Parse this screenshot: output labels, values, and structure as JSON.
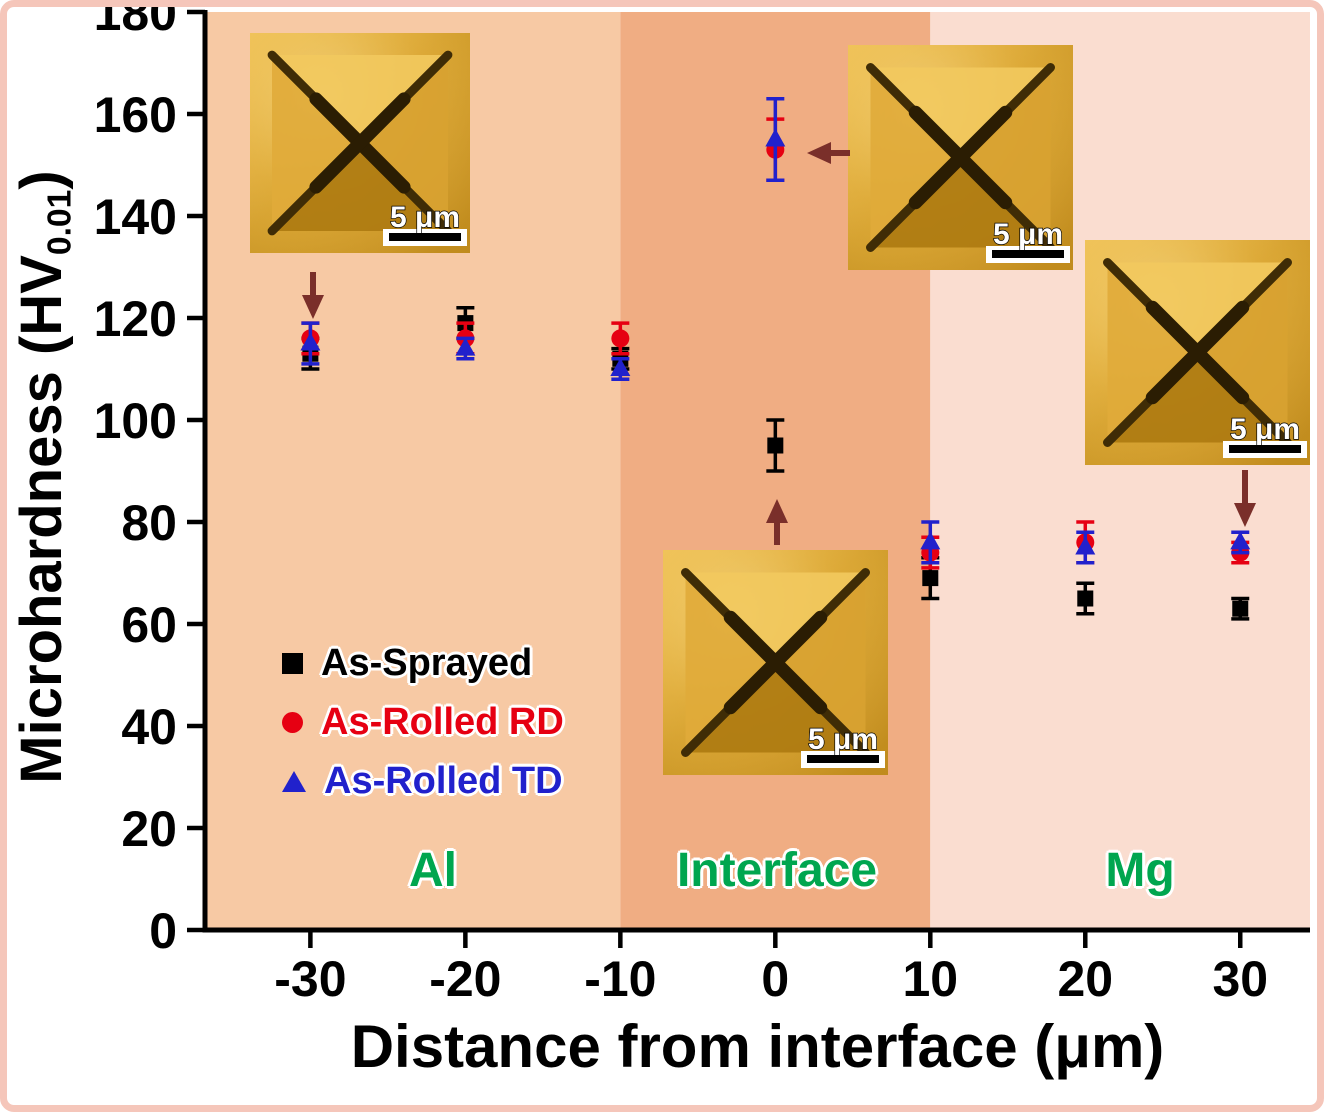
{
  "colors": {
    "region_label": "#00a64f",
    "arrow": "#7a2f2a",
    "axis": "#000000"
  },
  "insets": [
    {
      "name": "al-indent-inset",
      "scale_label": "5 μm"
    },
    {
      "name": "interface-top-indent-inset",
      "scale_label": "5 μm"
    },
    {
      "name": "mg-indent-inset",
      "scale_label": "5 μm"
    },
    {
      "name": "interface-bottom-indent-inset",
      "scale_label": "5 μm"
    }
  ],
  "chart_data": {
    "type": "scatter",
    "title": "",
    "xlabel": "Distance from interface (μm)",
    "ylabel": {
      "prefix": "Microhardness (HV",
      "sub": "0.01",
      "suffix": ")"
    },
    "xlim": [
      -36.8,
      34.5
    ],
    "ylim": [
      0,
      180
    ],
    "xticks": [
      -30,
      -20,
      -10,
      0,
      10,
      20,
      30
    ],
    "yticks": [
      0,
      20,
      40,
      60,
      80,
      100,
      120,
      140,
      160,
      180
    ],
    "grid": false,
    "legend_position": "inside bottom-left",
    "regions": [
      {
        "label": "Al",
        "from": -36.8,
        "to": -10,
        "color": "#f7c9a4"
      },
      {
        "label": "Interface",
        "from": -10,
        "to": 10,
        "color": "#f0ad83"
      },
      {
        "label": "Mg",
        "from": 10,
        "to": 34.5,
        "color": "#faddd0"
      }
    ],
    "series": [
      {
        "name": "As-Sprayed",
        "marker": "square",
        "color": "#000000",
        "points": [
          {
            "x": -30,
            "y": 113,
            "err": 3
          },
          {
            "x": -20,
            "y": 119,
            "err": 3
          },
          {
            "x": -10,
            "y": 112,
            "err": 2
          },
          {
            "x": 0,
            "y": 95,
            "err": 5
          },
          {
            "x": 10,
            "y": 69,
            "err": 4
          },
          {
            "x": 20,
            "y": 65,
            "err": 3
          },
          {
            "x": 30,
            "y": 63,
            "err": 2
          }
        ]
      },
      {
        "name": "As-Rolled RD",
        "marker": "circle",
        "color": "#e60012",
        "points": [
          {
            "x": -30,
            "y": 116,
            "err": 3
          },
          {
            "x": -20,
            "y": 116,
            "err": 3
          },
          {
            "x": -10,
            "y": 116,
            "err": 3
          },
          {
            "x": 0,
            "y": 153,
            "err": 6
          },
          {
            "x": 10,
            "y": 74,
            "err": 3
          },
          {
            "x": 20,
            "y": 76,
            "err": 4
          },
          {
            "x": 30,
            "y": 74,
            "err": 2
          }
        ]
      },
      {
        "name": "As-Rolled TD",
        "marker": "triangle",
        "color": "#2121cc",
        "points": [
          {
            "x": -30,
            "y": 115,
            "err": 4
          },
          {
            "x": -20,
            "y": 114,
            "err": 2
          },
          {
            "x": -10,
            "y": 110,
            "err": 2
          },
          {
            "x": 0,
            "y": 155,
            "err": 8
          },
          {
            "x": 10,
            "y": 76,
            "err": 4
          },
          {
            "x": 20,
            "y": 75,
            "err": 3
          },
          {
            "x": 30,
            "y": 76,
            "err": 2
          }
        ]
      }
    ]
  }
}
